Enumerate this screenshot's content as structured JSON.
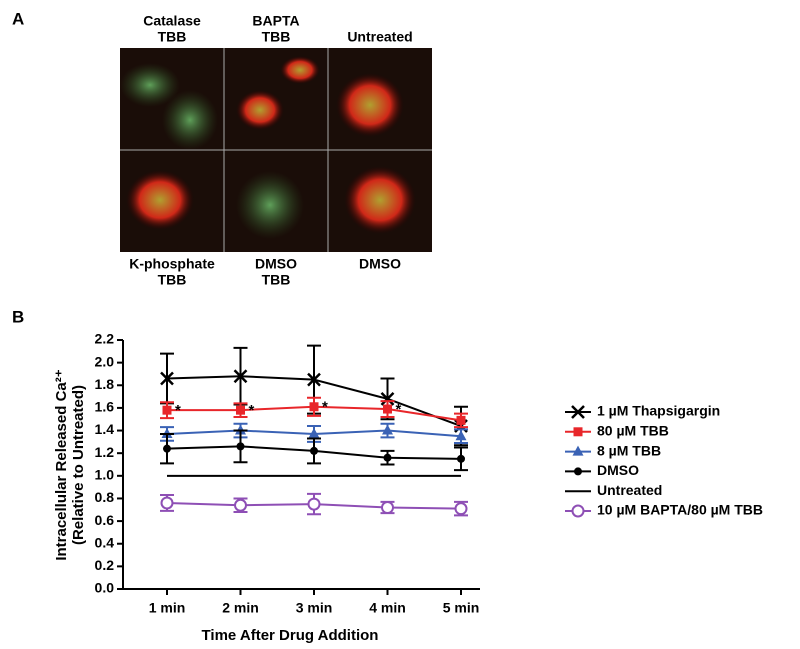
{
  "panel_a": {
    "label": "A",
    "top_labels": [
      [
        "Catalase",
        "TBB"
      ],
      [
        "BAPTA",
        "TBB"
      ],
      [
        "Untreated"
      ]
    ],
    "bottom_labels": [
      [
        "K-phosphate",
        "TBB"
      ],
      [
        "DMSO",
        "TBB"
      ],
      [
        "DMSO"
      ]
    ]
  },
  "chart_data": {
    "type": "line",
    "panel_label": "B",
    "x_label": "Time After Drug Addition",
    "y_label": [
      "Intracellular Released Ca²⁺",
      "(Relative to Untreated)"
    ],
    "categories": [
      "1 min",
      "2 min",
      "3 min",
      "4 min",
      "5 min"
    ],
    "ylim": [
      0,
      2.2
    ],
    "yticks": [
      {
        "value": 0,
        "label": "0.0"
      },
      0.2,
      0.4,
      0.6,
      0.8,
      {
        "value": 1,
        "label": "1.0"
      },
      1.2,
      1.4,
      1.6,
      1.8,
      {
        "value": 2,
        "label": "2.0"
      },
      2.2
    ],
    "series": [
      {
        "name": "1 µM Thapsigargin",
        "color": "#000000",
        "marker": "x",
        "values": [
          1.86,
          1.88,
          1.85,
          1.68,
          1.44
        ],
        "errors": [
          0.22,
          0.25,
          0.3,
          0.18,
          0.17
        ]
      },
      {
        "name": "80 µM TBB",
        "color": "#e8262a",
        "marker": "square",
        "values": [
          1.58,
          1.58,
          1.61,
          1.59,
          1.49
        ],
        "errors": [
          0.07,
          0.06,
          0.08,
          0.07,
          0.06
        ]
      },
      {
        "name": "8 µM TBB",
        "color": "#3a62b5",
        "marker": "triangle",
        "values": [
          1.37,
          1.4,
          1.37,
          1.4,
          1.35
        ],
        "errors": [
          0.06,
          0.06,
          0.07,
          0.06,
          0.06
        ]
      },
      {
        "name": "DMSO",
        "color": "#000000",
        "marker": "circle",
        "values": [
          1.24,
          1.26,
          1.22,
          1.16,
          1.15
        ],
        "errors": [
          0.13,
          0.14,
          0.11,
          0.06,
          0.1
        ]
      },
      {
        "name": "Untreated",
        "color": "#000000",
        "marker": "none",
        "values": [
          1,
          1,
          1,
          1,
          1
        ]
      },
      {
        "name": "10 µM BAPTA/80 µM TBB",
        "color": "#8e4fb5",
        "marker": "open-circle",
        "values": [
          0.76,
          0.74,
          0.75,
          0.72,
          0.71
        ],
        "errors": [
          0.07,
          0.06,
          0.09,
          0.05,
          0.06
        ]
      }
    ],
    "annotations": [
      {
        "text": "*",
        "x": "1 min",
        "series": "80 µM TBB"
      },
      {
        "text": "*",
        "x": "2 min",
        "series": "80 µM TBB"
      },
      {
        "text": "*",
        "x": "3 min",
        "series": "80 µM TBB"
      },
      {
        "text": "*",
        "x": "4 min",
        "series": "80 µM TBB"
      }
    ]
  }
}
